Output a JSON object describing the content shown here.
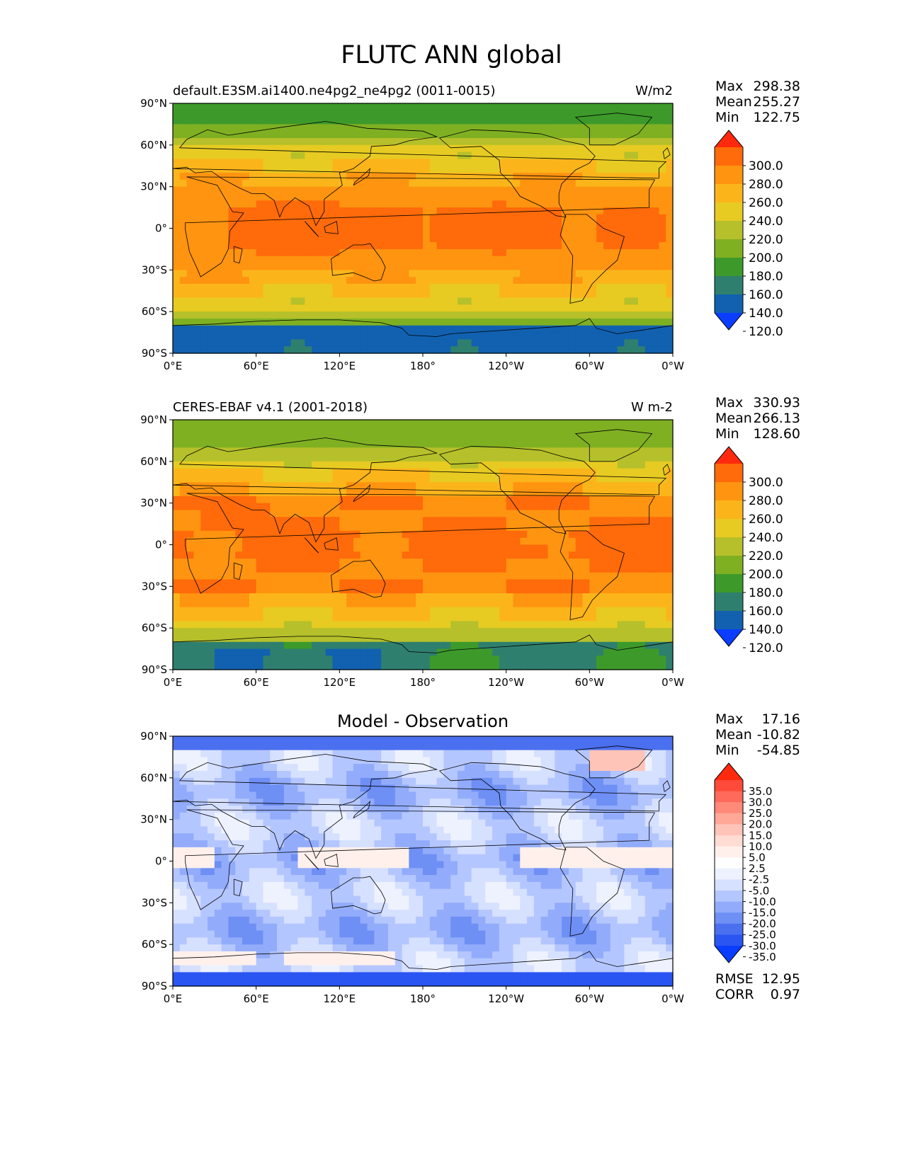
{
  "figure": {
    "title": "FLUTC ANN global"
  },
  "axes": {
    "lat_ticks": [
      "90°N",
      "60°N",
      "30°N",
      "0°",
      "30°S",
      "60°S",
      "90°S"
    ],
    "lon_ticks": [
      "0°E",
      "60°E",
      "120°E",
      "180°",
      "120°W",
      "60°W",
      "0°W"
    ]
  },
  "panels": [
    {
      "title_left": "default.E3SM.ai1400.ne4pg2_ne4pg2 (0011-0015)",
      "units": "W/m2",
      "title_center": "",
      "stats": [
        {
          "label": "Max",
          "value": "298.38"
        },
        {
          "label": "Mean",
          "value": "255.27"
        },
        {
          "label": "Min",
          "value": "122.75"
        }
      ],
      "colorbar_labels": [
        "300.0",
        "280.0",
        "260.0",
        "240.0",
        "220.0",
        "200.0",
        "180.0",
        "160.0",
        "140.0",
        "120.0"
      ],
      "colorbar_colors": [
        "#ff2a0d",
        "#ff6a0a",
        "#ff9410",
        "#fbb51b",
        "#e7cb22",
        "#b6c02a",
        "#7fb022",
        "#3d9a2a",
        "#2f7f6e",
        "#1161b0",
        "#0a3dff"
      ],
      "extra_stats": []
    },
    {
      "title_left": "CERES-EBAF v4.1 (2001-2018)",
      "units": "W m-2",
      "title_center": "",
      "stats": [
        {
          "label": "Max",
          "value": "330.93"
        },
        {
          "label": "Mean",
          "value": "266.13"
        },
        {
          "label": "Min",
          "value": "128.60"
        }
      ],
      "colorbar_labels": [
        "300.0",
        "280.0",
        "260.0",
        "240.0",
        "220.0",
        "200.0",
        "180.0",
        "160.0",
        "140.0",
        "120.0"
      ],
      "colorbar_colors": [
        "#ff2a0d",
        "#ff6a0a",
        "#ff9410",
        "#fbb51b",
        "#e7cb22",
        "#b6c02a",
        "#7fb022",
        "#3d9a2a",
        "#2f7f6e",
        "#1161b0",
        "#0a3dff"
      ],
      "extra_stats": []
    },
    {
      "title_left": "",
      "units": "",
      "title_center": "Model - Observation",
      "stats": [
        {
          "label": "Max",
          "value": "17.16"
        },
        {
          "label": "Mean",
          "value": "-10.82"
        },
        {
          "label": "Min",
          "value": "-54.85"
        }
      ],
      "colorbar_labels": [
        "35.0",
        "30.0",
        "25.0",
        "20.0",
        "15.0",
        "10.0",
        "5.0",
        "2.5",
        "-2.5",
        "-5.0",
        "-10.0",
        "-15.0",
        "-20.0",
        "-25.0",
        "-30.0",
        "-35.0"
      ],
      "colorbar_colors": [
        "#ff2a0d",
        "#ff4a3a",
        "#ff6a5a",
        "#ff8a7a",
        "#ffa898",
        "#ffc4b8",
        "#ffdcd4",
        "#fff0ec",
        "#ffffff",
        "#eef2ff",
        "#d6e0ff",
        "#b4c6ff",
        "#92acfb",
        "#6e8ff4",
        "#4a70ef",
        "#2a55f2",
        "#0a3dff"
      ],
      "extra_stats": [
        {
          "label": "RMSE",
          "value": "12.95"
        },
        {
          "label": "CORR",
          "value": "0.97"
        }
      ]
    }
  ]
}
